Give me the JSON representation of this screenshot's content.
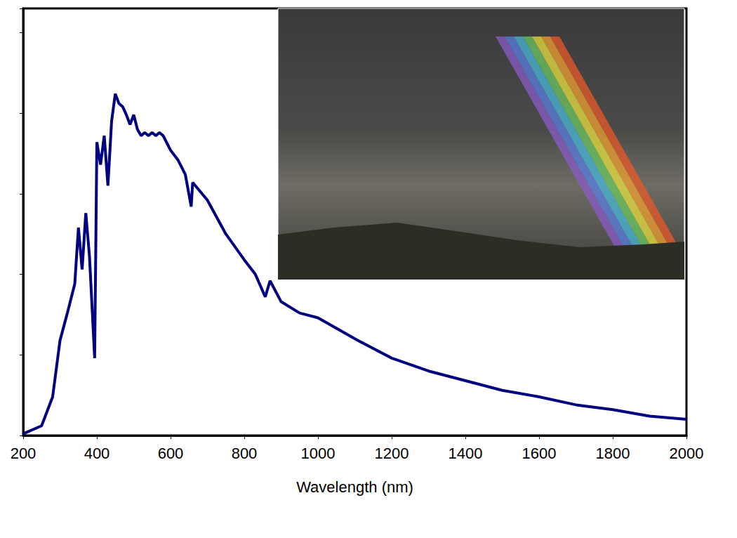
{
  "chart_data": {
    "type": "line",
    "x_label": "Wavelength (nm)",
    "x": [
      200,
      250,
      280,
      300,
      320,
      340,
      350,
      360,
      370,
      380,
      394,
      400,
      410,
      420,
      430,
      440,
      450,
      460,
      470,
      480,
      490,
      500,
      510,
      520,
      530,
      540,
      550,
      560,
      570,
      580,
      600,
      620,
      640,
      656,
      660,
      700,
      750,
      800,
      830,
      857,
      870,
      900,
      950,
      1000,
      1100,
      1200,
      1300,
      1400,
      1500,
      1600,
      1700,
      1800,
      1900,
      2000
    ],
    "values": [
      0.01,
      0.06,
      0.24,
      0.59,
      0.76,
      0.94,
      1.29,
      1.03,
      1.38,
      1.11,
      0.48,
      1.82,
      1.68,
      1.86,
      1.55,
      1.95,
      2.12,
      2.06,
      2.04,
      1.99,
      1.93,
      1.99,
      1.9,
      1.86,
      1.88,
      1.86,
      1.88,
      1.86,
      1.88,
      1.86,
      1.77,
      1.71,
      1.62,
      1.42,
      1.57,
      1.46,
      1.25,
      1.09,
      1.0,
      0.86,
      0.96,
      0.83,
      0.76,
      0.73,
      0.6,
      0.48,
      0.4,
      0.34,
      0.28,
      0.24,
      0.19,
      0.16,
      0.12,
      0.1
    ],
    "color": "#000080",
    "xlim": [
      200,
      2000
    ],
    "xticks": [
      200,
      400,
      600,
      800,
      1000,
      1200,
      1400,
      1600,
      1800,
      2000
    ],
    "ylim": [
      0,
      2.65
    ],
    "yticks": [
      0,
      0.5,
      1,
      1.5,
      2,
      2.5
    ],
    "tick_labels": "x",
    "grid": false
  }
}
